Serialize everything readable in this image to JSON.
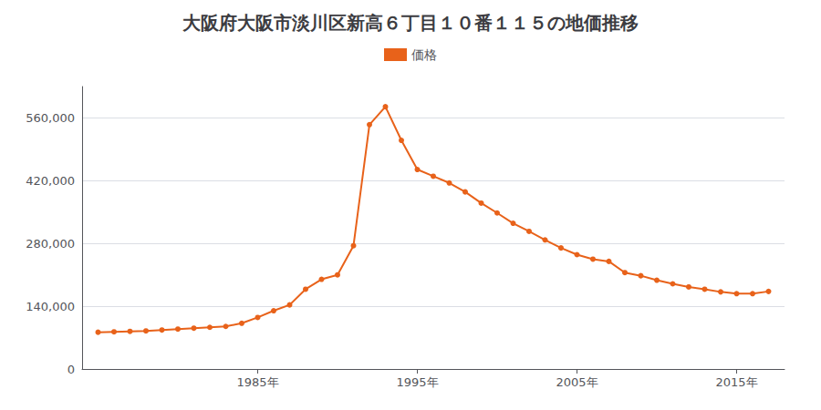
{
  "chart_data": {
    "type": "line",
    "title": "大阪府大阪市淡川区新高６丁目１０番１１５の地価推移",
    "x": [
      1975,
      1976,
      1977,
      1978,
      1979,
      1980,
      1981,
      1982,
      1983,
      1984,
      1985,
      1986,
      1987,
      1988,
      1989,
      1990,
      1991,
      1992,
      1993,
      1994,
      1995,
      1996,
      1997,
      1998,
      1999,
      2000,
      2001,
      2002,
      2003,
      2004,
      2005,
      2006,
      2007,
      2008,
      2009,
      2010,
      2011,
      2012,
      2013,
      2014,
      2015,
      2016,
      2017
    ],
    "series": [
      {
        "name": "価格",
        "color": "#E8621A",
        "marker": "circle",
        "values": [
          82000,
          83000,
          84000,
          85000,
          87000,
          89000,
          91000,
          93000,
          95000,
          102000,
          115000,
          130000,
          143000,
          178000,
          200000,
          210000,
          275000,
          545000,
          585000,
          510000,
          445000,
          430000,
          415000,
          395000,
          370000,
          348000,
          325000,
          307000,
          288000,
          270000,
          255000,
          245000,
          240000,
          215000,
          208000,
          198000,
          190000,
          183000,
          178000,
          172000,
          168000,
          168000,
          173000
        ]
      }
    ],
    "xlim": [
      1974,
      2018
    ],
    "xticks": [
      {
        "value": 1985,
        "label": "1985年"
      },
      {
        "value": 1995,
        "label": "1995年"
      },
      {
        "value": 2005,
        "label": "2005年"
      },
      {
        "value": 2015,
        "label": "2015年"
      }
    ],
    "ylim": [
      0,
      630000
    ],
    "yticks": [
      0,
      {
        "value": 140000,
        "label": "140,000"
      },
      {
        "value": 280000,
        "label": "280,000"
      },
      {
        "value": 420000,
        "label": "420,000"
      },
      {
        "value": 560000,
        "label": "560,000"
      }
    ],
    "grid": true,
    "legend": "top"
  }
}
